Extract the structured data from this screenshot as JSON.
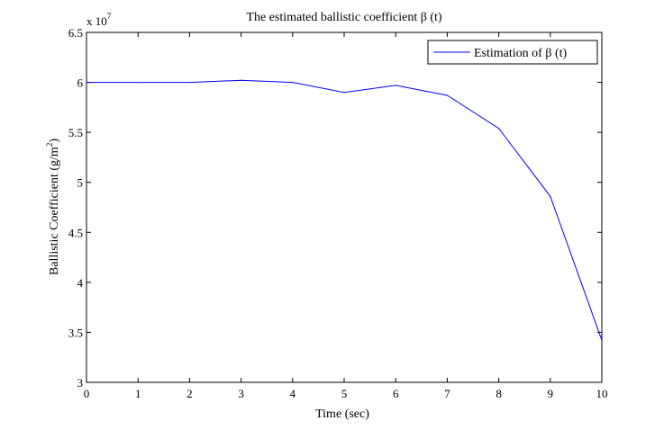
{
  "chart_data": {
    "type": "line",
    "title": "The estimated ballistic coefficient β (t)",
    "xlabel": "Time (sec)",
    "ylabel": "Ballistic Coefficient (g/m²)",
    "ylabel_main": "Ballistic Coefficient (g/m",
    "ylabel_sup": "2",
    "ylabel_end": ")",
    "y_multiplier": "x 10",
    "y_multiplier_exp": "7",
    "xlim": [
      0,
      10
    ],
    "ylim": [
      3,
      6.5
    ],
    "xticks": [
      0,
      1,
      2,
      3,
      4,
      5,
      6,
      7,
      8,
      9,
      10
    ],
    "xtick_labels": [
      "0",
      "1",
      "2",
      "3",
      "4",
      "5",
      "6",
      "7",
      "8",
      "9",
      "10"
    ],
    "yticks": [
      3,
      3.5,
      4,
      4.5,
      5,
      5.5,
      6,
      6.5
    ],
    "ytick_labels": [
      "3",
      "3.5",
      "4",
      "4.5",
      "5",
      "5.5",
      "6",
      "6.5"
    ],
    "grid": false,
    "legend_position": "top-right",
    "series": [
      {
        "name": "Estimation of β (t)",
        "color": "#0000ff",
        "x": [
          0,
          1,
          2,
          3,
          4,
          5,
          6,
          7,
          8,
          9,
          10
        ],
        "y": [
          6.0,
          6.0,
          6.0,
          6.02,
          6.0,
          5.9,
          5.97,
          5.87,
          5.54,
          4.86,
          3.42
        ]
      }
    ]
  }
}
